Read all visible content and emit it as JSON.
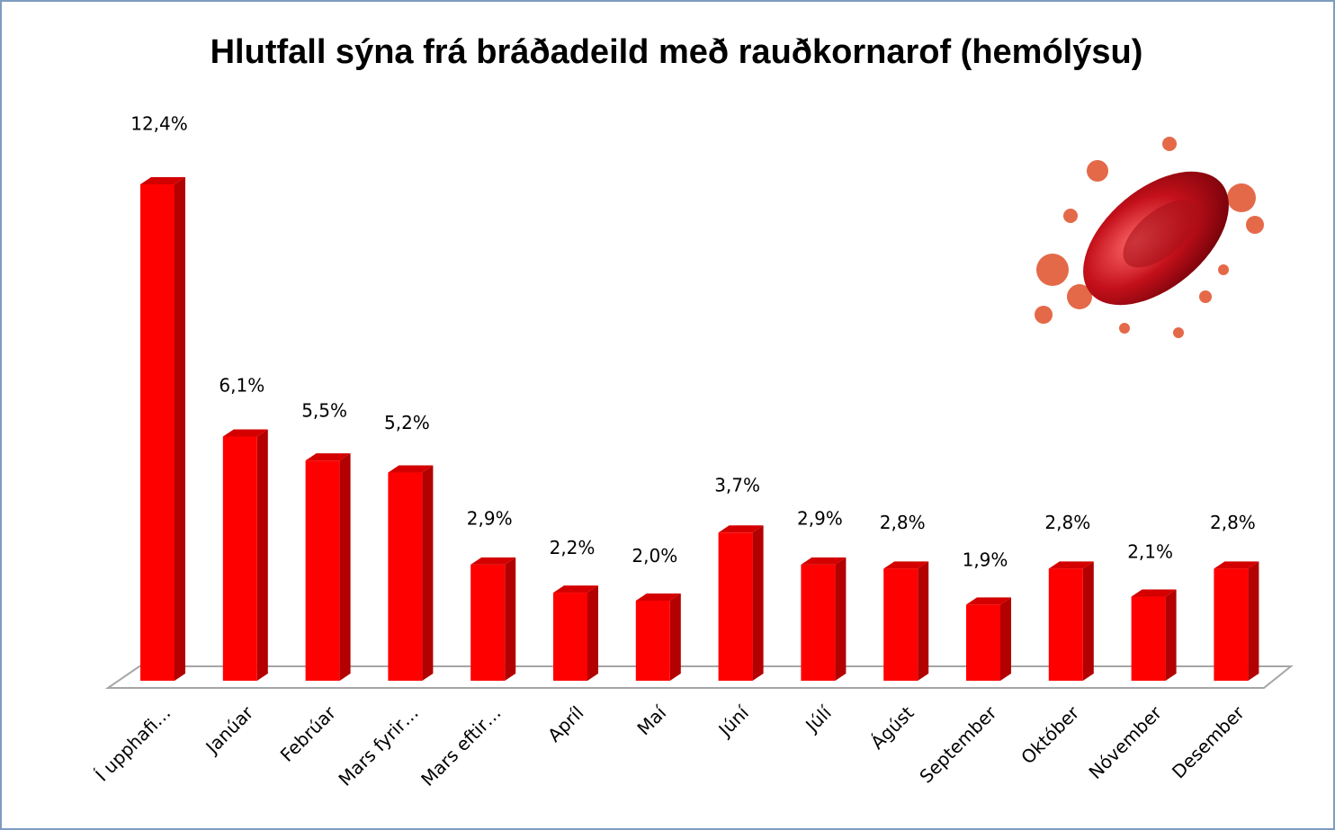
{
  "chart_data": {
    "type": "bar3d",
    "title": "Hlutfall sýna frá bráðadeild með rauðkornarof (hemólýsu)",
    "categories": [
      "Í upphafi…",
      "Janúar",
      "Febrúar",
      "Mars fyrir…",
      "Mars eftir…",
      "Apríl",
      "Maí",
      "Júní",
      "Júlí",
      "Ágúst",
      "September",
      "Október",
      "Nóvember",
      "Desember"
    ],
    "values": [
      12.4,
      6.1,
      5.5,
      5.2,
      2.9,
      2.2,
      2.0,
      3.7,
      2.9,
      2.8,
      1.9,
      2.8,
      2.1,
      2.8
    ],
    "value_labels": [
      "12,4%",
      "6,1%",
      "5,5%",
      "5,2%",
      "2,9%",
      "2,2%",
      "2,0%",
      "3,7%",
      "2,9%",
      "2,8%",
      "1,9%",
      "2,8%",
      "2,1%",
      "2,8%"
    ],
    "color": "#ff0000"
  }
}
